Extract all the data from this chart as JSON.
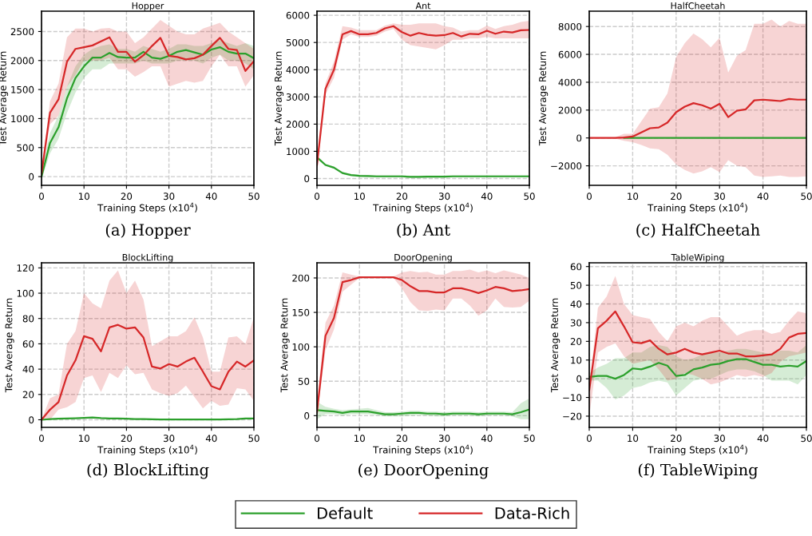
{
  "chart_data": [
    {
      "type": "line",
      "title": "Hopper",
      "xlabel": "Training Steps (x10$^{4}$)",
      "ylabel": "Test Average Return",
      "annotations": [
        "(a) Hopper"
      ],
      "grid": true,
      "xlim": [
        0,
        50
      ],
      "xticks": [
        0,
        10,
        20,
        30,
        40,
        50
      ],
      "ylim": [
        -150,
        2850
      ],
      "yticks": [
        0,
        500,
        1000,
        1500,
        2000,
        2500
      ],
      "x": [
        0,
        2,
        4,
        6,
        8,
        10,
        12,
        14,
        16,
        18,
        20,
        22,
        24,
        26,
        28,
        30,
        32,
        34,
        36,
        38,
        40,
        42,
        44,
        46,
        48,
        50
      ],
      "series": [
        {
          "color": "#2ca02c",
          "values": [
            0,
            580,
            850,
            1350,
            1700,
            1900,
            2050,
            2050,
            2130,
            2060,
            2050,
            2050,
            2150,
            2050,
            2030,
            2080,
            2150,
            2180,
            2140,
            2100,
            2190,
            2230,
            2150,
            2120,
            2120,
            2040
          ],
          "lower": [
            -50,
            400,
            650,
            1100,
            1450,
            1700,
            1850,
            1850,
            1950,
            1950,
            1950,
            1950,
            2000,
            1950,
            1950,
            1950,
            2000,
            2000,
            2000,
            1950,
            2050,
            2100,
            2000,
            2000,
            1950,
            1850
          ],
          "upper": [
            80,
            750,
            1050,
            1550,
            1900,
            2100,
            2200,
            2250,
            2280,
            2200,
            2200,
            2150,
            2250,
            2200,
            2150,
            2200,
            2280,
            2280,
            2250,
            2250,
            2300,
            2350,
            2300,
            2250,
            2300,
            2250
          ]
        },
        {
          "color": "#d62728",
          "values": [
            50,
            1100,
            1330,
            1980,
            2200,
            2230,
            2260,
            2330,
            2400,
            2150,
            2150,
            1980,
            2090,
            2250,
            2390,
            2080,
            2060,
            2020,
            2040,
            2100,
            2250,
            2390,
            2200,
            2180,
            1820,
            1990
          ],
          "lower": [
            0,
            900,
            1050,
            1550,
            1750,
            2000,
            2000,
            2000,
            2050,
            1850,
            1850,
            1720,
            1800,
            1900,
            1900,
            1550,
            1600,
            1650,
            1620,
            1650,
            1900,
            2100,
            1900,
            1900,
            1550,
            1750
          ],
          "upper": [
            100,
            1300,
            1600,
            2400,
            2550,
            2550,
            2500,
            2550,
            2560,
            2500,
            2500,
            2300,
            2400,
            2550,
            2700,
            2600,
            2500,
            2450,
            2450,
            2550,
            2600,
            2650,
            2500,
            2400,
            2300,
            2200
          ]
        }
      ]
    },
    {
      "type": "line",
      "title": "Ant",
      "xlabel": "Training Steps (x10$^{4}$)",
      "ylabel": "Test Average Return",
      "annotations": [
        "(b) Ant"
      ],
      "grid": true,
      "xlim": [
        0,
        50
      ],
      "xticks": [
        0,
        10,
        20,
        30,
        40,
        50
      ],
      "ylim": [
        -250,
        6150
      ],
      "yticks": [
        0,
        1000,
        2000,
        3000,
        4000,
        5000,
        6000
      ],
      "x": [
        0,
        2,
        4,
        6,
        8,
        10,
        12,
        14,
        16,
        18,
        20,
        22,
        24,
        26,
        28,
        30,
        32,
        34,
        36,
        38,
        40,
        42,
        44,
        46,
        48,
        50
      ],
      "series": [
        {
          "color": "#2ca02c",
          "values": [
            780,
            500,
            400,
            200,
            130,
            100,
            90,
            80,
            80,
            80,
            80,
            60,
            60,
            70,
            70,
            70,
            80,
            80,
            80,
            80,
            80,
            80,
            80,
            80,
            80,
            80
          ],
          "lower": [
            740,
            460,
            360,
            160,
            90,
            60,
            50,
            40,
            40,
            40,
            40,
            20,
            20,
            30,
            30,
            30,
            40,
            40,
            40,
            40,
            40,
            40,
            40,
            40,
            40,
            40
          ],
          "upper": [
            820,
            540,
            440,
            240,
            170,
            140,
            130,
            120,
            120,
            120,
            120,
            100,
            100,
            110,
            110,
            110,
            120,
            120,
            120,
            120,
            120,
            120,
            120,
            120,
            120,
            120
          ]
        },
        {
          "color": "#d62728",
          "values": [
            500,
            3300,
            4000,
            5300,
            5420,
            5300,
            5300,
            5350,
            5520,
            5600,
            5380,
            5250,
            5350,
            5280,
            5250,
            5270,
            5350,
            5220,
            5320,
            5300,
            5430,
            5320,
            5400,
            5370,
            5450,
            5460
          ],
          "lower": [
            300,
            3100,
            3700,
            5100,
            5300,
            5200,
            5200,
            5250,
            5400,
            5500,
            5100,
            4900,
            4850,
            4800,
            4750,
            4900,
            5100,
            5100,
            5150,
            5150,
            5200,
            5150,
            5150,
            5150,
            5150,
            5150
          ],
          "upper": [
            700,
            3500,
            4300,
            5600,
            5550,
            5450,
            5450,
            5450,
            5620,
            5700,
            5650,
            5650,
            5700,
            5700,
            5700,
            5600,
            5550,
            5400,
            5450,
            5450,
            5620,
            5500,
            5600,
            5650,
            5750,
            5800
          ]
        }
      ]
    },
    {
      "type": "line",
      "title": "HalfCheetah",
      "xlabel": "Training Steps (x10$^{4}$)",
      "ylabel": "Test Average Return",
      "annotations": [
        "(c) HalfCheetah"
      ],
      "grid": true,
      "xlim": [
        0,
        50
      ],
      "xticks": [
        0,
        10,
        20,
        30,
        40,
        50
      ],
      "ylim": [
        -3400,
        9100
      ],
      "yticks": [
        {
          "value": -2000,
          "label": "−2000"
        },
        0,
        2000,
        4000,
        6000,
        8000
      ],
      "x": [
        0,
        2,
        4,
        6,
        8,
        10,
        12,
        14,
        16,
        18,
        20,
        22,
        24,
        26,
        28,
        30,
        32,
        34,
        36,
        38,
        40,
        42,
        44,
        46,
        48,
        50
      ],
      "series": [
        {
          "color": "#2ca02c",
          "values": [
            null,
            null,
            null,
            null,
            0,
            0,
            0,
            0,
            0,
            0,
            0,
            0,
            0,
            0,
            0,
            0,
            0,
            0,
            0,
            0,
            0,
            0,
            0,
            0,
            0,
            0
          ]
        },
        {
          "color": "#d62728",
          "values": [
            0,
            0,
            0,
            0,
            30,
            100,
            400,
            700,
            750,
            1100,
            1850,
            2250,
            2500,
            2350,
            2100,
            2450,
            1500,
            1950,
            2050,
            2700,
            2750,
            2700,
            2650,
            2800,
            2750,
            2750
          ],
          "lower": [
            0,
            0,
            0,
            -50,
            -200,
            -300,
            -500,
            -750,
            -800,
            -1200,
            -1900,
            -2300,
            -2550,
            -2400,
            -2100,
            -2450,
            -1600,
            -2000,
            -2100,
            -2700,
            -2800,
            -2750,
            -2700,
            -2800,
            -2800,
            -2750
          ],
          "upper": [
            0,
            0,
            0,
            50,
            300,
            300,
            1200,
            2100,
            2200,
            3200,
            5800,
            6800,
            7500,
            7100,
            6500,
            7200,
            4700,
            5900,
            6300,
            8200,
            8200,
            8500,
            8000,
            8400,
            8200,
            8200
          ]
        }
      ]
    },
    {
      "type": "line",
      "title": "BlockLifting",
      "xlabel": "Training Steps (x10$^{4}$)",
      "ylabel": "Test Average Return",
      "annotations": [
        "(d) BlockLifting"
      ],
      "grid": true,
      "xlim": [
        0,
        50
      ],
      "xticks": [
        0,
        10,
        20,
        30,
        40,
        50
      ],
      "ylim": [
        -6,
        124
      ],
      "yticks": [
        0,
        20,
        40,
        60,
        80,
        100,
        120
      ],
      "x": [
        0,
        2,
        4,
        6,
        8,
        10,
        12,
        14,
        16,
        18,
        20,
        22,
        24,
        26,
        28,
        30,
        32,
        34,
        36,
        38,
        40,
        42,
        44,
        46,
        48,
        50
      ],
      "series": [
        {
          "color": "#2ca02c",
          "values": [
            0,
            0.5,
            0.8,
            1,
            1.2,
            1.5,
            1.8,
            1.3,
            1,
            1,
            0.8,
            0.6,
            0.5,
            0.4,
            0.3,
            0.3,
            0.3,
            0.3,
            0.3,
            0.3,
            0.3,
            0.3,
            0.4,
            0.5,
            1,
            1
          ]
        },
        {
          "color": "#d62728",
          "values": [
            0,
            8,
            14,
            35,
            47,
            66,
            64,
            54,
            73,
            75,
            72,
            73,
            65,
            42,
            40.5,
            44,
            42,
            46,
            49,
            38,
            26.5,
            24,
            38,
            46,
            42,
            47
          ],
          "lower": [
            0,
            0,
            8,
            10,
            14,
            33,
            35,
            22,
            37,
            33,
            43,
            36,
            37,
            24,
            21,
            19,
            21,
            27,
            18,
            9,
            15,
            11,
            12,
            25,
            24,
            15
          ],
          "upper": [
            0,
            17,
            20,
            60,
            70,
            100,
            92,
            88,
            110,
            118,
            100,
            110,
            95,
            58,
            62,
            66,
            66,
            70,
            81,
            65,
            38,
            38,
            65,
            66,
            60,
            81
          ]
        }
      ]
    },
    {
      "type": "line",
      "title": "DoorOpening",
      "xlabel": "Training Steps (x10$^{4}$)",
      "ylabel": "Test Average Return",
      "annotations": [
        "(e) DoorOpening"
      ],
      "grid": true,
      "legend": "bottom",
      "xlim": [
        0,
        50
      ],
      "xticks": [
        0,
        10,
        20,
        30,
        40,
        50
      ],
      "ylim": [
        -17,
        222
      ],
      "yticks": [
        0,
        50,
        100,
        150,
        200
      ],
      "x": [
        0,
        2,
        4,
        6,
        8,
        10,
        12,
        14,
        16,
        18,
        20,
        22,
        24,
        26,
        28,
        30,
        32,
        34,
        36,
        38,
        40,
        42,
        44,
        46,
        48,
        50
      ],
      "series": [
        {
          "name": "Default",
          "color": "#2ca02c",
          "values": [
            8,
            7,
            6,
            4,
            6,
            6,
            6,
            4,
            2,
            2,
            3,
            4,
            4,
            3,
            3,
            2,
            3,
            3,
            3,
            2,
            3,
            3,
            3,
            2,
            5,
            9
          ],
          "lower": [
            -5,
            2,
            2,
            0,
            2,
            2,
            2,
            1,
            -1,
            -1,
            -1,
            0,
            1,
            0,
            -1,
            -1,
            0,
            0,
            0,
            -1,
            0,
            0,
            0,
            -1,
            -5,
            -5
          ],
          "upper": [
            20,
            13,
            10,
            8,
            9,
            10,
            11,
            8,
            5,
            5,
            6,
            7,
            7,
            6,
            6,
            5,
            6,
            6,
            6,
            5,
            6,
            6,
            6,
            5,
            18,
            25
          ]
        },
        {
          "name": "Data-Rich",
          "color": "#d62728",
          "values": [
            5,
            116,
            142,
            194,
            197,
            201,
            201,
            201,
            201,
            201,
            197,
            188,
            181,
            181,
            179,
            179,
            185,
            185,
            182,
            178,
            182,
            187,
            185,
            181,
            182,
            184
          ],
          "lower": [
            0,
            95,
            125,
            180,
            190,
            200,
            200,
            200,
            200,
            200,
            185,
            165,
            153,
            152,
            154,
            153,
            170,
            170,
            160,
            145,
            153,
            170,
            158,
            157,
            158,
            167
          ],
          "upper": [
            20,
            135,
            160,
            208,
            205,
            202,
            202,
            202,
            202,
            202,
            208,
            210,
            208,
            209,
            205,
            205,
            210,
            210,
            212,
            208,
            211,
            207,
            211,
            208,
            205,
            200
          ]
        }
      ]
    },
    {
      "type": "line",
      "title": "TableWiping",
      "xlabel": "Training Steps (x10$^{4}$)",
      "ylabel": "Test Average Return",
      "annotations": [
        "(f) TableWiping"
      ],
      "grid": true,
      "xlim": [
        0,
        50
      ],
      "xticks": [
        0,
        10,
        20,
        30,
        40,
        50
      ],
      "ylim": [
        -26,
        62
      ],
      "yticks": [
        {
          "value": -20,
          "label": "−20"
        },
        {
          "value": -10,
          "label": "−10"
        },
        0,
        10,
        20,
        30,
        40,
        50,
        60
      ],
      "x": [
        0,
        2,
        4,
        6,
        8,
        10,
        12,
        14,
        16,
        18,
        20,
        22,
        24,
        26,
        28,
        30,
        32,
        34,
        36,
        38,
        40,
        42,
        44,
        46,
        48,
        50
      ],
      "series": [
        {
          "color": "#2ca02c",
          "values": [
            1,
            1.5,
            1.5,
            0,
            2,
            5.5,
            5,
            6.5,
            8.5,
            7,
            1.5,
            2,
            5,
            6,
            7.5,
            8,
            9.5,
            10.5,
            10.5,
            9,
            7.5,
            7.5,
            6.5,
            7,
            6.5,
            9.5
          ],
          "lower": [
            -1,
            -1,
            -5,
            -11,
            -9,
            -5,
            -4,
            -2,
            -1,
            -2,
            -9,
            -5,
            -1,
            0,
            0,
            2,
            4,
            5,
            5,
            4,
            2,
            -1,
            -1,
            -1,
            -3,
            2
          ],
          "upper": [
            3,
            6,
            8,
            11,
            11,
            14,
            14,
            17,
            18,
            17,
            12,
            10,
            11,
            13,
            14,
            14,
            15,
            16,
            16,
            15,
            14,
            13,
            15,
            15,
            14,
            18
          ]
        },
        {
          "color": "#d62728",
          "values": [
            -6,
            27,
            31,
            36,
            28,
            19.5,
            19,
            20.5,
            16,
            13,
            14,
            16,
            14,
            13,
            14,
            15,
            13.5,
            13.5,
            12,
            12,
            12.5,
            13,
            16,
            22,
            24,
            24.5
          ],
          "lower": [
            -20,
            14,
            17,
            19,
            12,
            8,
            9,
            10,
            5,
            -1,
            0,
            3,
            2,
            0,
            -3,
            -2,
            0,
            2,
            1,
            2,
            1,
            3,
            9,
            12,
            13,
            14
          ],
          "upper": [
            -5,
            38,
            44,
            55,
            40,
            34,
            33,
            32,
            25,
            20,
            28,
            30,
            28,
            31,
            33,
            33,
            28,
            23,
            25,
            26,
            26,
            24,
            25,
            31,
            36,
            35
          ]
        }
      ]
    }
  ]
}
